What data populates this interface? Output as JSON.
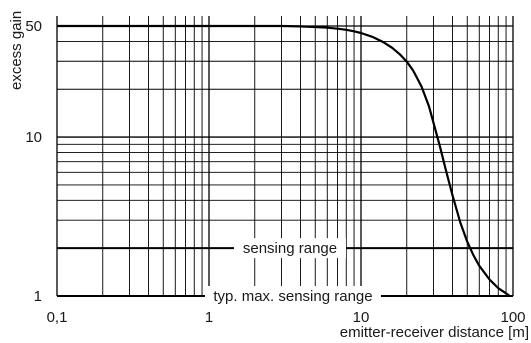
{
  "chart_data": {
    "type": "line",
    "xlabel": "emitter-receiver distance [m]",
    "ylabel": "excess gain",
    "x_scale": "log",
    "y_scale": "log",
    "xlim": [
      0.1,
      100
    ],
    "ylim": [
      1,
      60
    ],
    "x_ticks": [
      {
        "value": 0.1,
        "label": "0,1"
      },
      {
        "value": 1,
        "label": "1"
      },
      {
        "value": 10,
        "label": "10"
      },
      {
        "value": 100,
        "label": "100"
      }
    ],
    "y_ticks": [
      {
        "value": 1,
        "label": "1"
      },
      {
        "value": 10,
        "label": "10"
      },
      {
        "value": 50,
        "label": "50"
      }
    ],
    "grid": true,
    "series": [
      {
        "x": [
          0.1,
          1,
          3,
          4,
          5,
          6,
          7,
          8,
          9,
          10,
          12,
          14,
          16,
          18,
          20,
          22,
          25,
          28,
          30,
          33,
          36,
          40,
          45,
          50,
          55,
          60,
          70,
          80,
          90,
          95
        ],
        "y": [
          50,
          50,
          50,
          49.7,
          49.3,
          48.8,
          48.1,
          47.3,
          46.3,
          45.2,
          42.6,
          39.6,
          36.5,
          33.2,
          29.8,
          26.3,
          20.8,
          15.6,
          12.3,
          8.8,
          6.3,
          4.3,
          2.9,
          2.2,
          1.8,
          1.55,
          1.27,
          1.12,
          1.04,
          1.0
        ]
      }
    ],
    "reference_lines": [
      {
        "y": 2,
        "label": "sensing range"
      },
      {
        "y": 1,
        "label": "typ. max. sensing range"
      }
    ]
  }
}
